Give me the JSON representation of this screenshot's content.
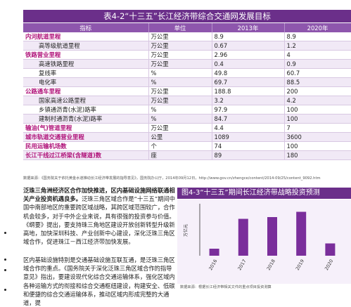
{
  "table": {
    "title": "表4-2“十三五”长江经济带综合交通网发展目标",
    "headers": [
      "指标",
      "单位",
      "2013年",
      "2020年"
    ],
    "rows": [
      {
        "indicator": "内河航道里程",
        "unit": "万公里",
        "y2013": "8.9",
        "y2020": "8.9",
        "main": true
      },
      {
        "indicator": "高等级航道里程",
        "unit": "万公里",
        "y2013": "0.67",
        "y2020": "1.2",
        "main": false
      },
      {
        "indicator": "铁路营业里程",
        "unit": "万公里",
        "y2013": "2.96",
        "y2020": "4",
        "main": true
      },
      {
        "indicator": "高速铁路里程",
        "unit": "万公里",
        "y2013": "0.4",
        "y2020": "0.9",
        "main": false
      },
      {
        "indicator": "复线率",
        "unit": "%",
        "y2013": "49.8",
        "y2020": "60.7",
        "main": false
      },
      {
        "indicator": "电化率",
        "unit": "%",
        "y2013": "69.7",
        "y2020": "88.5",
        "main": false
      },
      {
        "indicator": "公路通车里程",
        "unit": "万公里",
        "y2013": "188.8",
        "y2020": "200",
        "main": true
      },
      {
        "indicator": "国家高速公路里程",
        "unit": "万公里",
        "y2013": "3.2",
        "y2020": "4.2",
        "main": false
      },
      {
        "indicator": "乡镇通沥青(水泥)路率",
        "unit": "%",
        "y2013": "97.9",
        "y2020": "100",
        "main": false
      },
      {
        "indicator": "建制村通沥青(水泥)路率",
        "unit": "%",
        "y2013": "84.7",
        "y2020": "100",
        "main": false
      },
      {
        "indicator": "输油(气)管道里程",
        "unit": "万公里",
        "y2013": "4.4",
        "y2020": "7",
        "main": true
      },
      {
        "indicator": "城市轨道交通营业里程",
        "unit": "公里",
        "y2013": "1089",
        "y2020": "3600",
        "main": true
      },
      {
        "indicator": "民用运输机场数",
        "unit": "个",
        "y2013": "74",
        "y2020": "100",
        "main": true
      },
      {
        "indicator": "长江干线过江桥梁(含隧道)数",
        "unit": "座",
        "y2013": "89",
        "y2020": "180",
        "main": true
      }
    ],
    "source": "数据来源：《国务院关于依托黄金水道推动长江经济带发展的指导意见》，国务院办公厅，2014年09月12日，http://www.gov.cn/zhengce/content/2014-09/25/content_9092.htm"
  },
  "text": {
    "p1_lead": "泛珠三角洲经济区合作加快推进，区内基础设施网络联通相关产业投资机遇良多。",
    "p1_body": "泛珠三角区域合作是“十三五”期间中国中南部地区的重要跨区域战略，其跨区域范围较广，合作机会较多，对于中外企业来说，具有很强的投资参与价值。《纲要》提出，要支持珠三角地区建设开放创新转型升级新高地，加快深圳科技、产业创新中心建设，深化泛珠三角区域合作，促进珠江－西江经济带加快发展。",
    "p2": "区内基础设施特别是交通基础设施互联互通，是泛珠三角区域合作的重点。《国务院关于深化泛珠三角区域合作的指导意见》指出，要建设现代化综合交通运输体系，强化区域内各种运输方式的衔接和综合交通枢纽建设，构建安全、低碳和便捷的综合交通运输体系，推动区域内形成完整的大通道，提"
  },
  "chart": {
    "title": "图4-3“十三五”期间长江经济带战略投资预测",
    "source": "数据来源：根据长江经济带相关文件的重点项目投资测算",
    "ylabel": "万亿元"
  },
  "chart_data": {
    "type": "bar",
    "title": "图4-3“十三五”期间长江经济带战略投资预测",
    "categories": [
      "2016",
      "2017",
      "2018",
      "2019",
      "2020"
    ],
    "values": [
      8.2,
      9.05,
      9.1,
      9.25,
      8.35
    ],
    "ylabel": "万亿元",
    "ylim": [
      8.0,
      9.4
    ],
    "grid": false,
    "color": "#7a2e9b"
  }
}
